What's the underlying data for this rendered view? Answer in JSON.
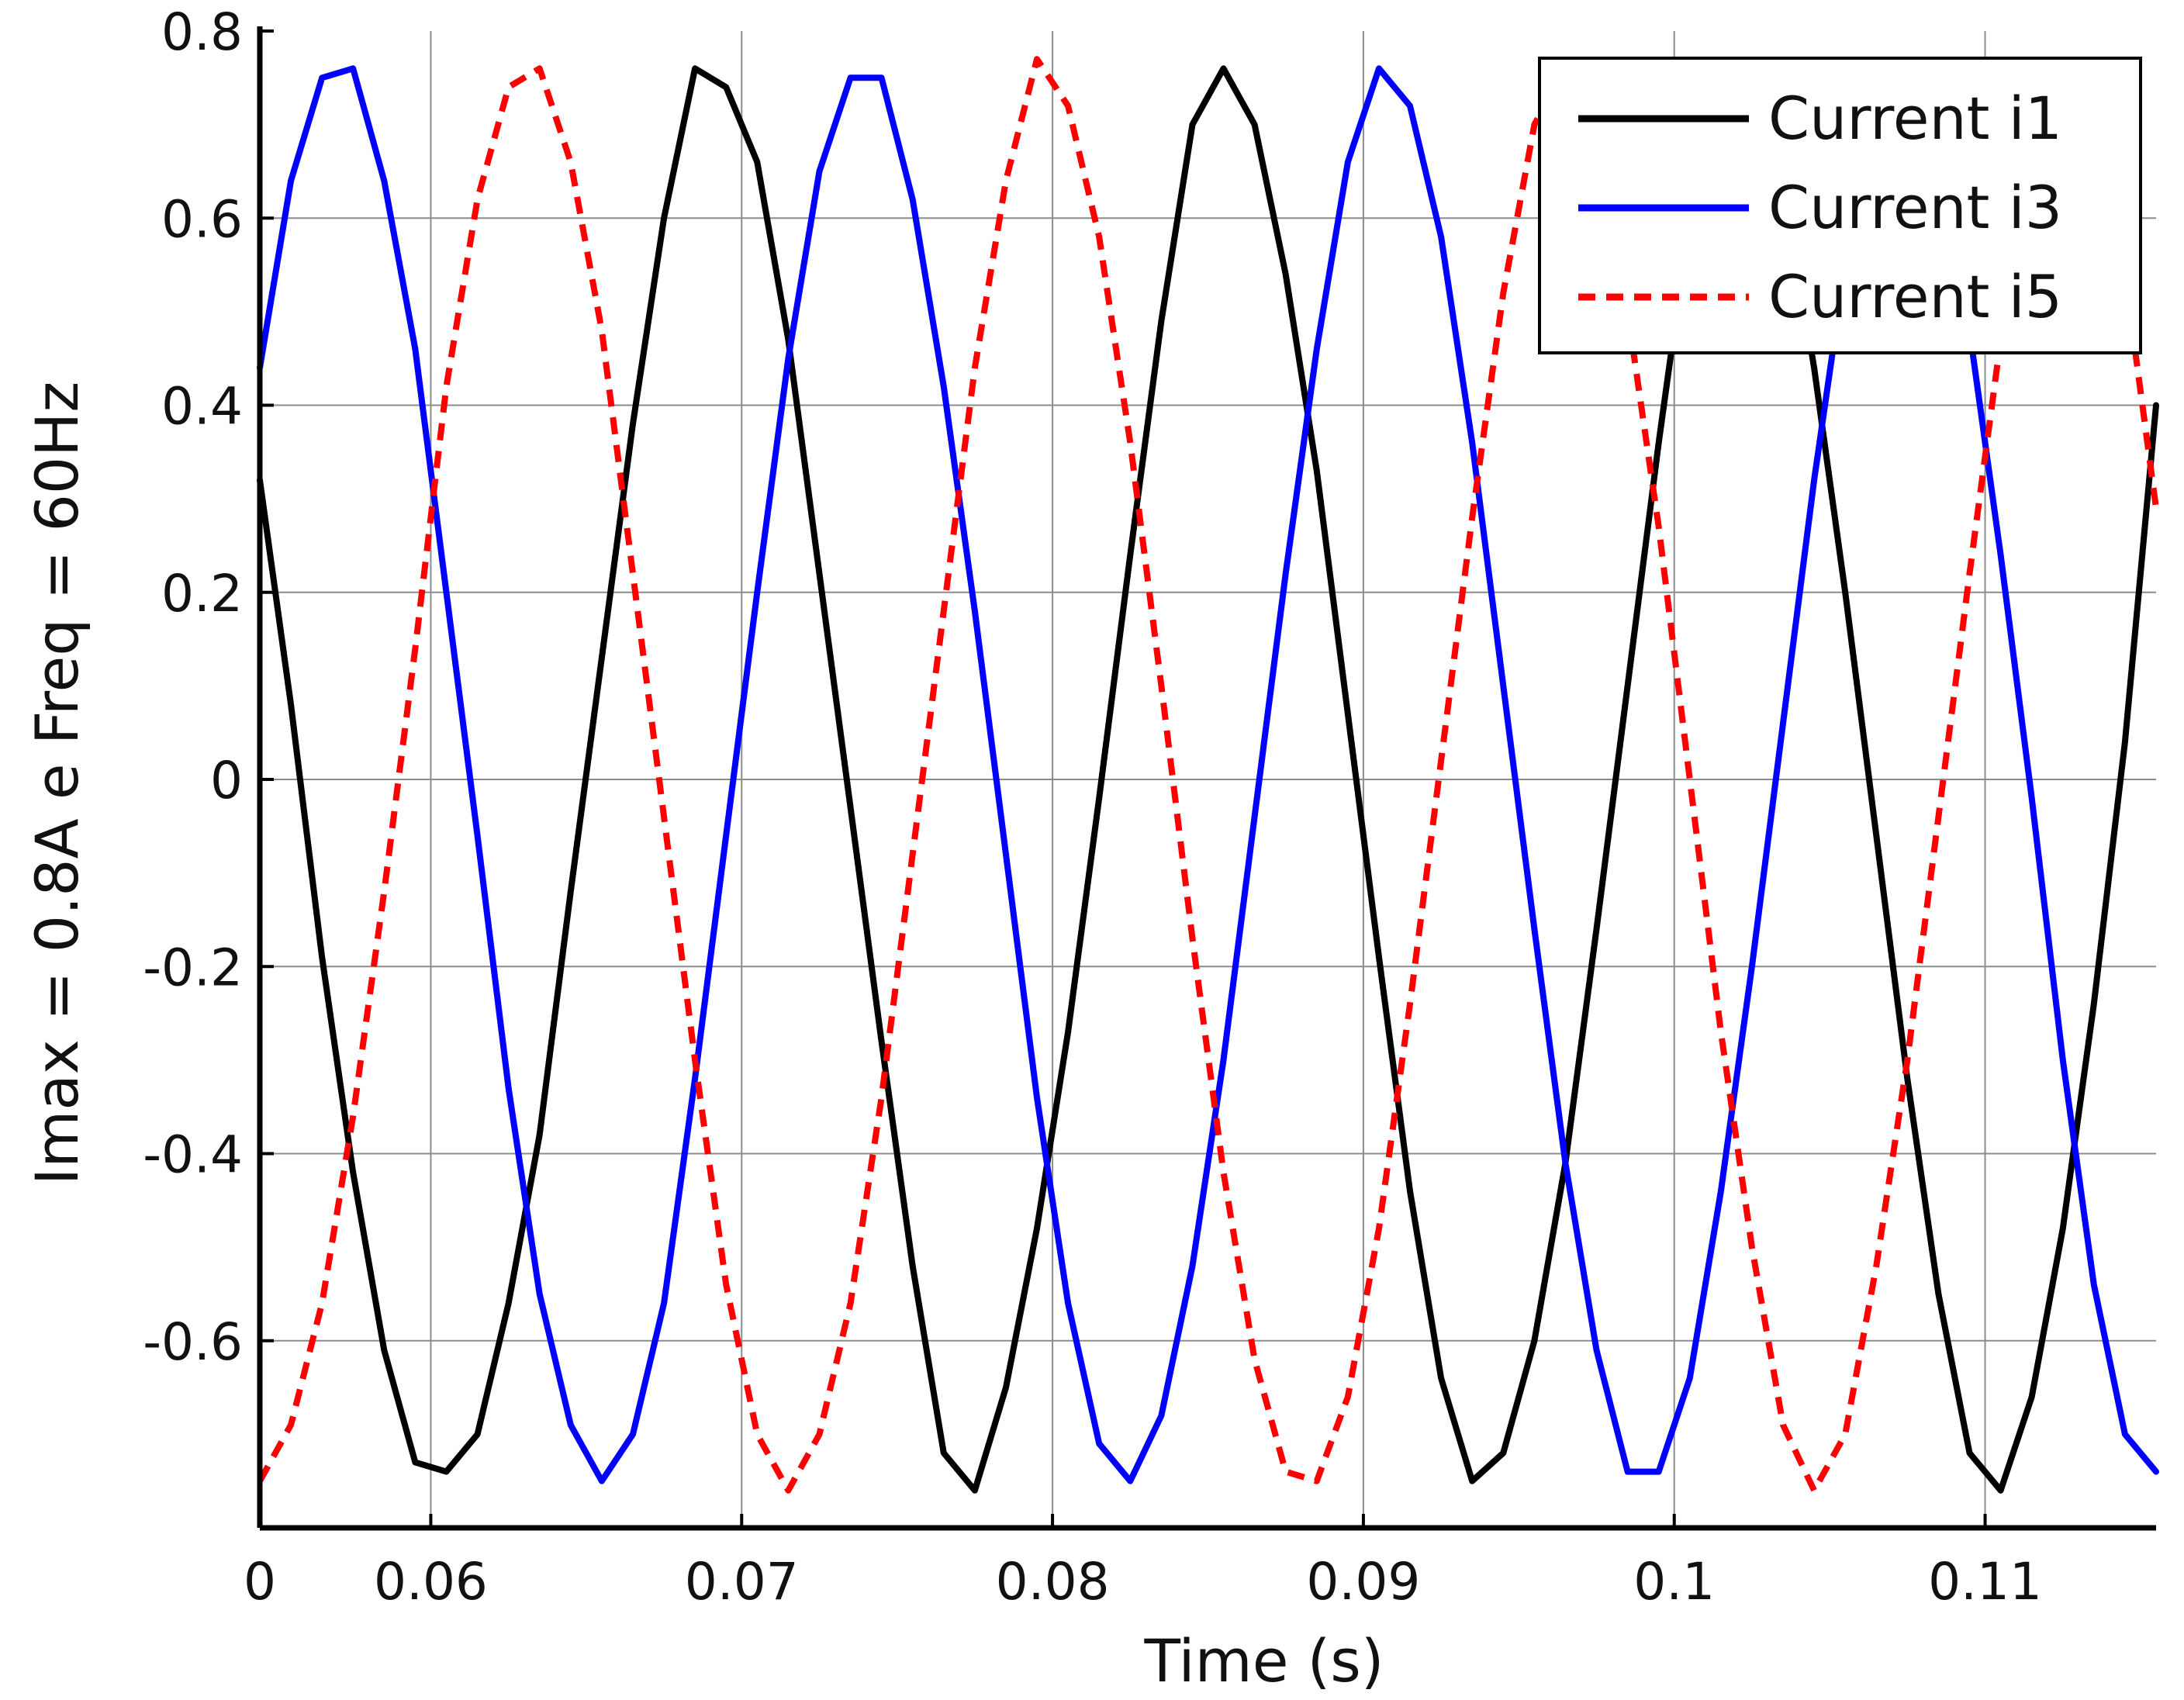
{
  "chart_data": {
    "type": "line",
    "title": "",
    "xlabel": "Time (s)",
    "ylabel": "Imax = 0.8A e Freq = 60Hz",
    "xlim": [
      0.0545,
      0.1155
    ],
    "ylim": [
      -0.8,
      0.8
    ],
    "grid": true,
    "legend_position": "top-right",
    "x_ticks": [
      {
        "value": 0.0545,
        "label": "0"
      },
      {
        "value": 0.06,
        "label": "0.06"
      },
      {
        "value": 0.07,
        "label": "0.07"
      },
      {
        "value": 0.08,
        "label": "0.08"
      },
      {
        "value": 0.09,
        "label": "0.09"
      },
      {
        "value": 0.1,
        "label": "0.1"
      },
      {
        "value": 0.11,
        "label": "0.11"
      }
    ],
    "y_ticks": [
      {
        "value": 0.8,
        "label": "0.8"
      },
      {
        "value": 0.6,
        "label": "0.6"
      },
      {
        "value": 0.4,
        "label": "0.4"
      },
      {
        "value": 0.2,
        "label": "0.2"
      },
      {
        "value": 0,
        "label": "0"
      },
      {
        "value": -0.2,
        "label": "-0.2"
      },
      {
        "value": -0.4,
        "label": "-0.4"
      },
      {
        "value": -0.6,
        "label": "-0.6"
      }
    ],
    "series": [
      {
        "name": "Current i1",
        "color": "#000000",
        "dash": "solid",
        "points": [
          [
            0.0545,
            0.32
          ],
          [
            0.0555,
            0.08
          ],
          [
            0.0565,
            -0.19
          ],
          [
            0.0575,
            -0.42
          ],
          [
            0.0585,
            -0.61
          ],
          [
            0.0595,
            -0.73
          ],
          [
            0.0605,
            -0.74
          ],
          [
            0.0615,
            -0.7
          ],
          [
            0.0625,
            -0.56
          ],
          [
            0.0635,
            -0.38
          ],
          [
            0.0645,
            -0.12
          ],
          [
            0.0655,
            0.13
          ],
          [
            0.0665,
            0.38
          ],
          [
            0.0675,
            0.6
          ],
          [
            0.0685,
            0.76
          ],
          [
            0.0695,
            0.74
          ],
          [
            0.0705,
            0.66
          ],
          [
            0.0715,
            0.47
          ],
          [
            0.0725,
            0.22
          ],
          [
            0.0735,
            -0.03
          ],
          [
            0.0745,
            -0.28
          ],
          [
            0.0755,
            -0.52
          ],
          [
            0.0765,
            -0.72
          ],
          [
            0.0775,
            -0.76
          ],
          [
            0.0785,
            -0.65
          ],
          [
            0.0795,
            -0.48
          ],
          [
            0.0805,
            -0.27
          ],
          [
            0.0815,
            -0.02
          ],
          [
            0.0825,
            0.24
          ],
          [
            0.0835,
            0.49
          ],
          [
            0.0845,
            0.7
          ],
          [
            0.0855,
            0.76
          ],
          [
            0.0865,
            0.7
          ],
          [
            0.0875,
            0.54
          ],
          [
            0.0885,
            0.33
          ],
          [
            0.0895,
            0.07
          ],
          [
            0.0905,
            -0.19
          ],
          [
            0.0915,
            -0.44
          ],
          [
            0.0925,
            -0.64
          ],
          [
            0.0935,
            -0.75
          ],
          [
            0.0945,
            -0.72
          ],
          [
            0.0955,
            -0.6
          ],
          [
            0.0965,
            -0.41
          ],
          [
            0.0975,
            -0.16
          ],
          [
            0.0985,
            0.1
          ],
          [
            0.0995,
            0.36
          ],
          [
            0.1005,
            0.6
          ],
          [
            0.1015,
            0.75
          ],
          [
            0.1025,
            0.76
          ],
          [
            0.1035,
            0.64
          ],
          [
            0.1045,
            0.44
          ],
          [
            0.1055,
            0.2
          ],
          [
            0.1065,
            -0.06
          ],
          [
            0.1075,
            -0.32
          ],
          [
            0.1085,
            -0.55
          ],
          [
            0.1095,
            -0.72
          ],
          [
            0.1105,
            -0.76
          ],
          [
            0.1115,
            -0.66
          ],
          [
            0.1125,
            -0.48
          ],
          [
            0.1135,
            -0.24
          ],
          [
            0.1145,
            0.04
          ],
          [
            0.1155,
            0.4
          ]
        ]
      },
      {
        "name": "Current i3",
        "color": "#0000ff",
        "dash": "solid",
        "points": [
          [
            0.0545,
            0.44
          ],
          [
            0.0555,
            0.64
          ],
          [
            0.0565,
            0.75
          ],
          [
            0.0575,
            0.76
          ],
          [
            0.0585,
            0.64
          ],
          [
            0.0595,
            0.46
          ],
          [
            0.0605,
            0.2
          ],
          [
            0.0615,
            -0.06
          ],
          [
            0.0625,
            -0.33
          ],
          [
            0.0635,
            -0.55
          ],
          [
            0.0645,
            -0.69
          ],
          [
            0.0655,
            -0.75
          ],
          [
            0.0665,
            -0.7
          ],
          [
            0.0675,
            -0.56
          ],
          [
            0.0685,
            -0.32
          ],
          [
            0.0695,
            -0.06
          ],
          [
            0.0705,
            0.2
          ],
          [
            0.0715,
            0.45
          ],
          [
            0.0725,
            0.65
          ],
          [
            0.0735,
            0.75
          ],
          [
            0.0745,
            0.75
          ],
          [
            0.0755,
            0.62
          ],
          [
            0.0765,
            0.42
          ],
          [
            0.0775,
            0.18
          ],
          [
            0.0785,
            -0.08
          ],
          [
            0.0795,
            -0.34
          ],
          [
            0.0805,
            -0.56
          ],
          [
            0.0815,
            -0.71
          ],
          [
            0.0825,
            -0.75
          ],
          [
            0.0835,
            -0.68
          ],
          [
            0.0845,
            -0.52
          ],
          [
            0.0855,
            -0.3
          ],
          [
            0.0865,
            -0.04
          ],
          [
            0.0875,
            0.22
          ],
          [
            0.0885,
            0.46
          ],
          [
            0.0895,
            0.66
          ],
          [
            0.0905,
            0.76
          ],
          [
            0.0915,
            0.72
          ],
          [
            0.0925,
            0.58
          ],
          [
            0.0935,
            0.36
          ],
          [
            0.0945,
            0.1
          ],
          [
            0.0955,
            -0.16
          ],
          [
            0.0965,
            -0.41
          ],
          [
            0.0975,
            -0.61
          ],
          [
            0.0985,
            -0.74
          ],
          [
            0.0995,
            -0.74
          ],
          [
            0.1005,
            -0.64
          ],
          [
            0.1015,
            -0.44
          ],
          [
            0.1025,
            -0.2
          ],
          [
            0.1035,
            0.06
          ],
          [
            0.1045,
            0.32
          ],
          [
            0.1055,
            0.55
          ],
          [
            0.1065,
            0.71
          ],
          [
            0.1075,
            0.76
          ],
          [
            0.1085,
            0.66
          ],
          [
            0.1095,
            0.48
          ],
          [
            0.1105,
            0.24
          ],
          [
            0.1115,
            -0.02
          ],
          [
            0.1125,
            -0.3
          ],
          [
            0.1135,
            -0.54
          ],
          [
            0.1145,
            -0.7
          ],
          [
            0.1155,
            -0.74
          ]
        ]
      },
      {
        "name": "Current i5",
        "color": "#ff0000",
        "dash": "dashed",
        "points": [
          [
            0.0545,
            -0.75
          ],
          [
            0.0555,
            -0.69
          ],
          [
            0.0565,
            -0.56
          ],
          [
            0.0575,
            -0.36
          ],
          [
            0.0585,
            -0.12
          ],
          [
            0.0595,
            0.14
          ],
          [
            0.0605,
            0.42
          ],
          [
            0.0615,
            0.62
          ],
          [
            0.0625,
            0.74
          ],
          [
            0.0635,
            0.76
          ],
          [
            0.0645,
            0.66
          ],
          [
            0.0655,
            0.48
          ],
          [
            0.0665,
            0.22
          ],
          [
            0.0675,
            -0.04
          ],
          [
            0.0685,
            -0.3
          ],
          [
            0.0695,
            -0.54
          ],
          [
            0.0705,
            -0.7
          ],
          [
            0.0715,
            -0.76
          ],
          [
            0.0725,
            -0.7
          ],
          [
            0.0735,
            -0.56
          ],
          [
            0.0745,
            -0.34
          ],
          [
            0.0755,
            -0.08
          ],
          [
            0.0765,
            0.18
          ],
          [
            0.0775,
            0.44
          ],
          [
            0.0785,
            0.64
          ],
          [
            0.0795,
            0.77
          ],
          [
            0.0805,
            0.72
          ],
          [
            0.0815,
            0.58
          ],
          [
            0.0825,
            0.36
          ],
          [
            0.0835,
            0.1
          ],
          [
            0.0845,
            -0.17
          ],
          [
            0.0855,
            -0.42
          ],
          [
            0.0865,
            -0.62
          ],
          [
            0.0875,
            -0.74
          ],
          [
            0.0885,
            -0.75
          ],
          [
            0.0895,
            -0.66
          ],
          [
            0.0905,
            -0.48
          ],
          [
            0.0915,
            -0.24
          ],
          [
            0.0925,
            0.02
          ],
          [
            0.0935,
            0.28
          ],
          [
            0.0945,
            0.52
          ],
          [
            0.0955,
            0.7
          ],
          [
            0.0965,
            0.76
          ],
          [
            0.0975,
            0.7
          ],
          [
            0.0985,
            0.5
          ],
          [
            0.0995,
            0.27
          ],
          [
            0.1005,
            0.0
          ],
          [
            0.1015,
            -0.27
          ],
          [
            0.1025,
            -0.5
          ],
          [
            0.1035,
            -0.69
          ],
          [
            0.1045,
            -0.76
          ],
          [
            0.1055,
            -0.7
          ],
          [
            0.1065,
            -0.52
          ],
          [
            0.1075,
            -0.3
          ],
          [
            0.1085,
            -0.04
          ],
          [
            0.1095,
            0.22
          ],
          [
            0.1105,
            0.47
          ],
          [
            0.1115,
            0.66
          ],
          [
            0.1125,
            0.76
          ],
          [
            0.1135,
            0.7
          ],
          [
            0.1145,
            0.54
          ],
          [
            0.1155,
            0.29
          ]
        ]
      }
    ]
  }
}
